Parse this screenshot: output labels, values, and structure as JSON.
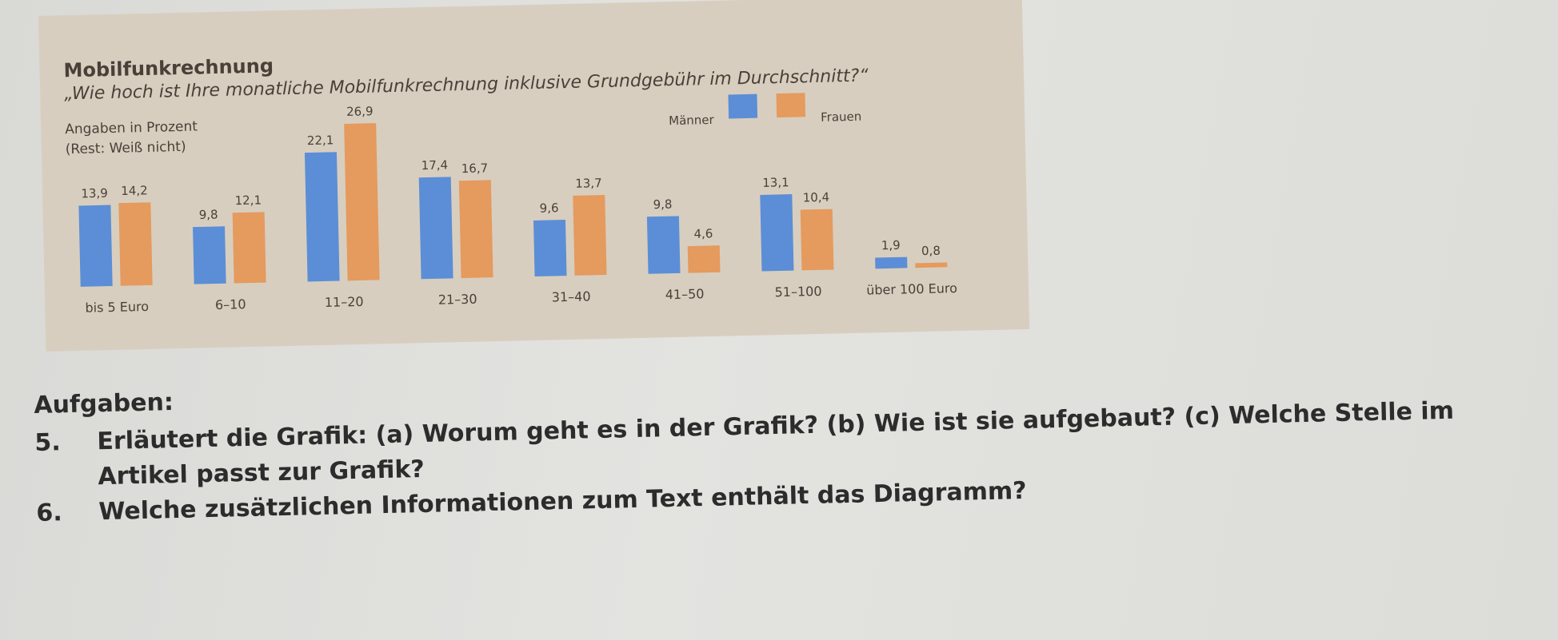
{
  "chart_data": {
    "type": "bar",
    "title": "Mobilfunkrechnung",
    "subtitle": "„Wie hoch ist Ihre monatliche Mobilfunkrechnung inklusive Grundgebühr im Durchschnitt?“",
    "notes": [
      "Angaben in Prozent",
      "(Rest: Weiß nicht)"
    ],
    "categories": [
      "bis 5 Euro",
      "6–10",
      "11–20",
      "21–30",
      "31–40",
      "41–50",
      "51–100",
      "über 100 Euro"
    ],
    "series": [
      {
        "name": "Männer",
        "color": "#5b8ed6",
        "values": [
          13.9,
          9.8,
          22.1,
          17.4,
          9.6,
          9.8,
          13.1,
          1.9
        ]
      },
      {
        "name": "Frauen",
        "color": "#e59a5e",
        "values": [
          14.2,
          12.1,
          26.9,
          16.7,
          13.7,
          4.6,
          10.4,
          0.8
        ]
      }
    ],
    "value_labels": [
      [
        "13,9",
        "9,8",
        "22,1",
        "17,4",
        "9,6",
        "9,8",
        "13,1",
        "1,9"
      ],
      [
        "14,2",
        "12,1",
        "26,9",
        "16,7",
        "13,7",
        "4,6",
        "10,4",
        "0,8"
      ]
    ],
    "ylim": [
      0,
      30
    ],
    "legend_position": "top-right"
  },
  "tasks": {
    "heading": "Aufgaben:",
    "items": [
      {
        "number": "5.",
        "text": "Erläutert die Grafik: (a) Worum geht es in der Grafik? (b) Wie ist sie aufgebaut? (c) Welche Stelle im Artikel passt zur Grafik?"
      },
      {
        "number": "6.",
        "text": "Welche zusätzlichen Informationen zum Text enthält das Diagramm?"
      }
    ]
  }
}
